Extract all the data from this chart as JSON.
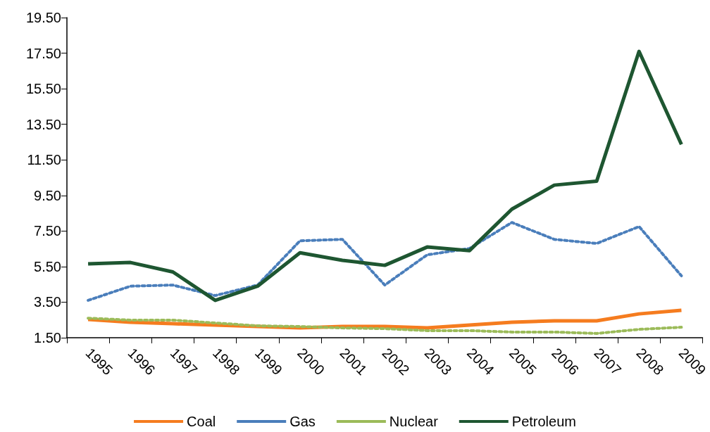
{
  "chart_data": {
    "type": "line",
    "categories": [
      "1995",
      "1996",
      "1997",
      "1998",
      "1999",
      "2000",
      "2001",
      "2002",
      "2003",
      "2004",
      "2005",
      "2006",
      "2007",
      "2008",
      "2009"
    ],
    "ylim": [
      1.5,
      19.5
    ],
    "yticks": [
      {
        "value": 1.5,
        "label": "1.50"
      },
      {
        "value": 3.5,
        "label": "3.50"
      },
      {
        "value": 5.5,
        "label": "5.50"
      },
      {
        "value": 7.5,
        "label": "7.50"
      },
      {
        "value": 9.5,
        "label": "9.50"
      },
      {
        "value": 11.5,
        "label": "11.50"
      },
      {
        "value": 13.5,
        "label": "13.50"
      },
      {
        "value": 15.5,
        "label": "15.50"
      },
      {
        "value": 17.5,
        "label": "17.50"
      },
      {
        "value": 19.5,
        "label": "19.50"
      }
    ],
    "grid": false,
    "legend": "bottom",
    "marker": "none",
    "series": [
      {
        "name": "Coal",
        "color": "#f57c1f",
        "line_style": "solid",
        "values": [
          2.53,
          2.37,
          2.29,
          2.21,
          2.13,
          2.05,
          2.13,
          2.13,
          2.05,
          2.21,
          2.37,
          2.45,
          2.45,
          2.84,
          3.04
        ]
      },
      {
        "name": "Gas",
        "color": "#4a7ebb",
        "line_style": "dotted",
        "values": [
          3.6,
          4.4,
          4.46,
          3.87,
          4.46,
          6.95,
          7.03,
          4.46,
          6.16,
          6.52,
          7.98,
          7.03,
          6.8,
          7.75,
          4.98
        ]
      },
      {
        "name": "Nuclear",
        "color": "#9bbb59",
        "line_style": "dotted",
        "values": [
          2.6,
          2.49,
          2.49,
          2.33,
          2.17,
          2.13,
          2.05,
          2.01,
          1.9,
          1.9,
          1.82,
          1.82,
          1.74,
          1.97,
          2.09
        ]
      },
      {
        "name": "Petroleum",
        "color": "#1e5631",
        "line_style": "solid",
        "values": [
          5.65,
          5.73,
          5.2,
          3.6,
          4.4,
          6.28,
          5.85,
          5.57,
          6.6,
          6.4,
          8.73,
          10.08,
          10.3,
          17.6,
          12.37
        ]
      }
    ]
  }
}
